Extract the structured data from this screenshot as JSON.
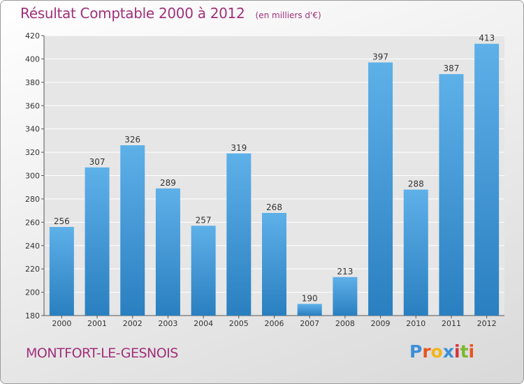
{
  "header": {
    "title": "Résultat Comptable 2000 à 2012",
    "subtitle": "(en milliers d'€)"
  },
  "footer": {
    "place_name": "MONTFORT-LE-GESNOIS",
    "brand_letters": [
      "P",
      "r",
      "o",
      "x",
      "i",
      "t",
      "i"
    ],
    "brand_colors": [
      "#3a8fd8",
      "#e8541e",
      "#f2b51c",
      "#3a8fd8",
      "#d8323a",
      "#7cb82f",
      "#e8541e"
    ]
  },
  "colors": {
    "bar_light": "#5eb0e8",
    "bar_dark": "#2a7fc0",
    "accent": "#a0307a",
    "grid": "#ffffff",
    "plot_bg": "#e6e6e6"
  },
  "chart_data": {
    "type": "bar",
    "title": "Résultat Comptable 2000 à 2012",
    "subtitle": "(en milliers d'€)",
    "categories": [
      "2000",
      "2001",
      "2002",
      "2003",
      "2004",
      "2005",
      "2006",
      "2007",
      "2008",
      "2009",
      "2010",
      "2011",
      "2012"
    ],
    "values": [
      256,
      307,
      326,
      289,
      257,
      319,
      268,
      190,
      213,
      397,
      288,
      387,
      413
    ],
    "ylim": [
      180,
      420
    ],
    "yticks": [
      180,
      200,
      220,
      240,
      260,
      280,
      300,
      320,
      340,
      360,
      380,
      400,
      420
    ],
    "grid": true,
    "data_labels": true
  }
}
